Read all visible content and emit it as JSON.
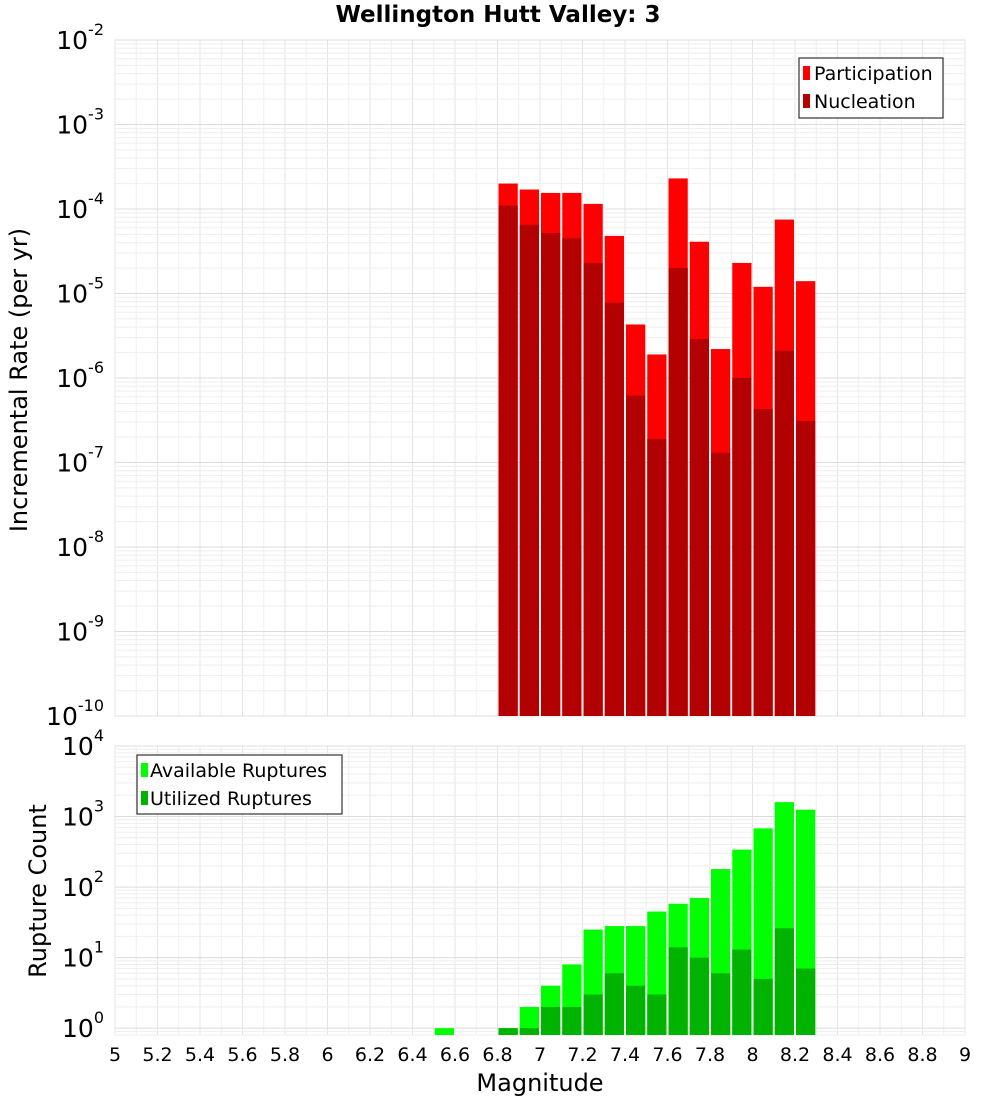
{
  "chart_data": [
    {
      "type": "bar",
      "title": "Wellington Hutt Valley: 3",
      "xlabel": "",
      "ylabel": "Incremental Rate (per yr)",
      "yscale": "log",
      "ylim": [
        1e-10,
        0.01
      ],
      "y_ticks": [
        {
          "base": "10",
          "exp": "-10"
        },
        {
          "base": "10",
          "exp": "-9"
        },
        {
          "base": "10",
          "exp": "-8"
        },
        {
          "base": "10",
          "exp": "-7"
        },
        {
          "base": "10",
          "exp": "-6"
        },
        {
          "base": "10",
          "exp": "-5"
        },
        {
          "base": "10",
          "exp": "-4"
        },
        {
          "base": "10",
          "exp": "-3"
        },
        {
          "base": "10",
          "exp": "-2"
        }
      ],
      "xlim": [
        5,
        9
      ],
      "grid": true,
      "legend_position": "top-right",
      "x": [
        6.85,
        6.95,
        7.05,
        7.15,
        7.25,
        7.35,
        7.45,
        7.55,
        7.65,
        7.75,
        7.85,
        7.95,
        8.05,
        8.15,
        8.25
      ],
      "series": [
        {
          "name": "Participation",
          "color": "#ff0000",
          "values": [
            0.0002,
            0.00017,
            0.000155,
            0.000155,
            0.000115,
            4.8e-05,
            4.3e-06,
            1.9e-06,
            0.00023,
            4.1e-05,
            2.2e-06,
            2.3e-05,
            1.2e-05,
            7.5e-05,
            1.4e-05
          ]
        },
        {
          "name": "Nucleation",
          "color": "#b30000",
          "values": [
            0.00011,
            6.5e-05,
            5.2e-05,
            4.5e-05,
            2.3e-05,
            7.8e-06,
            6.2e-07,
            1.9e-07,
            2e-05,
            2.9e-06,
            1.3e-07,
            1e-06,
            4.3e-07,
            2.1e-06,
            3.1e-07
          ]
        }
      ]
    },
    {
      "type": "bar",
      "title": "",
      "xlabel": "Magnitude",
      "ylabel": "Rupture Count",
      "yscale": "log",
      "ylim": [
        0.8,
        10000
      ],
      "y_ticks": [
        {
          "base": "10",
          "exp": "0"
        },
        {
          "base": "10",
          "exp": "1"
        },
        {
          "base": "10",
          "exp": "2"
        },
        {
          "base": "10",
          "exp": "3"
        },
        {
          "base": "10",
          "exp": "4"
        }
      ],
      "xlim": [
        5,
        9
      ],
      "x_ticks": [
        "5",
        "5.2",
        "5.4",
        "5.6",
        "5.8",
        "6",
        "6.2",
        "6.4",
        "6.6",
        "6.8",
        "7",
        "7.2",
        "7.4",
        "7.6",
        "7.8",
        "8",
        "8.2",
        "8.4",
        "8.6",
        "8.8",
        "9"
      ],
      "grid": true,
      "legend_position": "top-left",
      "x": [
        6.55,
        6.85,
        6.95,
        7.05,
        7.15,
        7.25,
        7.35,
        7.45,
        7.55,
        7.65,
        7.75,
        7.85,
        7.95,
        8.05,
        8.15,
        8.25
      ],
      "series": [
        {
          "name": "Available Ruptures",
          "color": "#00ff00",
          "values": [
            1,
            1,
            2,
            4,
            8,
            25,
            28,
            28,
            45,
            58,
            70,
            180,
            340,
            680,
            1600,
            1250
          ]
        },
        {
          "name": "Utilized Ruptures",
          "color": "#00b300",
          "values": [
            null,
            1,
            1,
            2,
            2,
            3,
            6,
            4,
            3,
            14,
            10,
            6,
            13,
            5,
            26,
            7
          ]
        }
      ]
    }
  ]
}
